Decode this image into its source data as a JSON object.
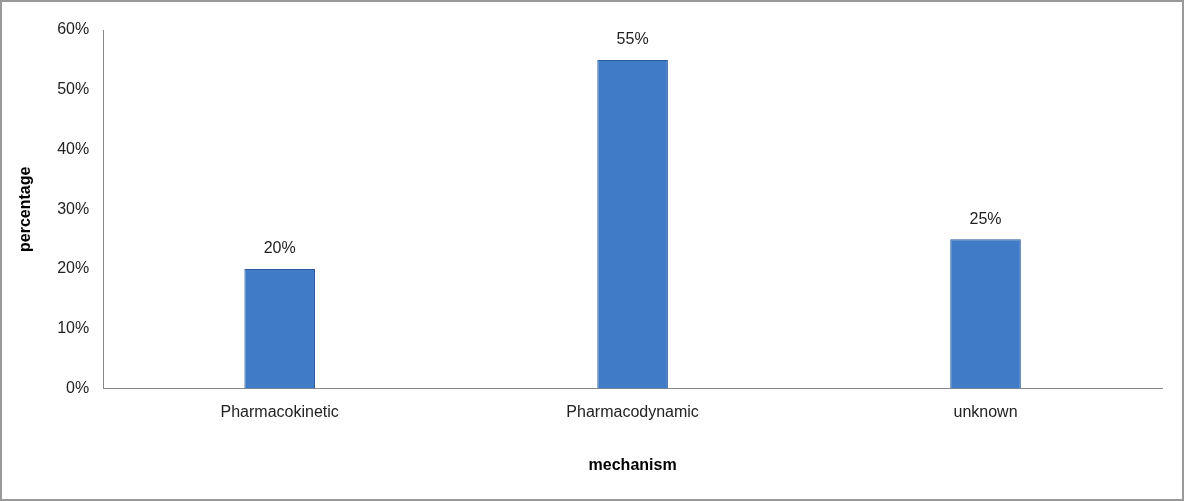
{
  "chart_data": {
    "type": "bar",
    "xlabel": "mechanism",
    "ylabel": "percentage",
    "categories": [
      "Pharmacokinetic",
      "Pharmacodynamic",
      "unknown"
    ],
    "values": [
      20,
      55,
      25
    ],
    "color": "#3f7bc6",
    "value_labels": [
      "20%",
      "55%",
      "25%"
    ],
    "ylim": [
      0,
      60
    ],
    "yticks": [
      {
        "value": 0,
        "label": "0%"
      },
      {
        "value": 10,
        "label": "10%"
      },
      {
        "value": 20,
        "label": "20%"
      },
      {
        "value": 30,
        "label": "30%"
      },
      {
        "value": 40,
        "label": "40%"
      },
      {
        "value": 50,
        "label": "50%"
      },
      {
        "value": 60,
        "label": "60%"
      }
    ],
    "grid": false,
    "legend": false
  }
}
